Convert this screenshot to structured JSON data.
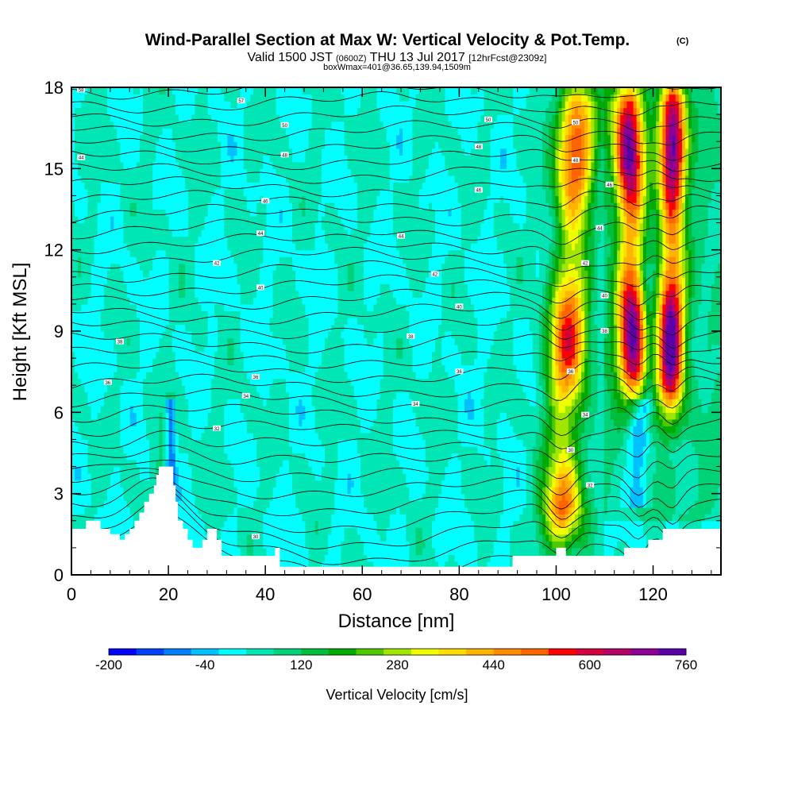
{
  "header": {
    "title": "Wind-Parallel Section at Max W: Vertical Velocity & Pot.Temp.",
    "copyright": "(C)",
    "valid_prefix": "Valid 1500 JST",
    "valid_utc": "(0600Z)",
    "valid_date": "THU 13 Jul 2017",
    "forecast": "[12hrFcst@2309z]",
    "boxinfo": "boxWmax=401@36.65,139.94,1509m"
  },
  "colorbar": {
    "label": "Vertical Velocity [cm/s]",
    "tick_labels": [
      "-200",
      "-40",
      "120",
      "280",
      "440",
      "600",
      "760"
    ],
    "colors": [
      "#0000ff",
      "#0040ff",
      "#0080ff",
      "#00c0ff",
      "#00ffff",
      "#00e6b4",
      "#00d278",
      "#00be3c",
      "#00aa00",
      "#50c800",
      "#a0e600",
      "#f0ff00",
      "#ffdc00",
      "#ffb400",
      "#ff8c00",
      "#ff6400",
      "#ff0000",
      "#d2003c",
      "#b40064",
      "#8c0096",
      "#5a00aa"
    ],
    "min": -200,
    "max": 760
  },
  "chart_data": {
    "type": "heatmap",
    "title": "Wind-Parallel Section at Max W: Vertical Velocity & Pot.Temp.",
    "xlabel": "Distance [nm]",
    "ylabel": "Height [Kft MSL]",
    "xlim": [
      0,
      134
    ],
    "ylim": [
      0,
      18
    ],
    "xticks": [
      0,
      20,
      40,
      60,
      80,
      100,
      120
    ],
    "yticks": [
      0,
      3,
      6,
      9,
      12,
      15,
      18
    ],
    "xtick_labels": [
      "0",
      "20",
      "40",
      "60",
      "80",
      "100",
      "120"
    ],
    "ytick_labels": [
      "0",
      "3",
      "6",
      "9",
      "12",
      "15",
      "18"
    ],
    "background_w": 30,
    "updrafts": [
      {
        "x_center": 101,
        "y_bottom": 1.0,
        "y_top": 18,
        "width": 6,
        "peak": 520,
        "tilt": 0.2
      },
      {
        "x_center": 116,
        "y_bottom": 6.0,
        "y_top": 18,
        "width": 4.5,
        "peak": 650,
        "tilt": -0.1
      },
      {
        "x_center": 123.5,
        "y_bottom": 5.5,
        "y_top": 18,
        "width": 4,
        "peak": 700,
        "tilt": 0.05
      },
      {
        "x_center": 19,
        "y_bottom": 3.0,
        "y_top": 6.2,
        "width": 4,
        "peak": 110,
        "tilt": 0.3
      }
    ],
    "downdrafts": [
      {
        "x_center": 117,
        "y_bottom": 3.0,
        "y_top": 6.0,
        "width": 3,
        "peak": -140
      },
      {
        "x_center": 119,
        "y_bottom": 6.5,
        "y_top": 11,
        "width": 2,
        "peak": -90
      },
      {
        "x_center": 20.5,
        "y_bottom": 2.5,
        "y_top": 6.0,
        "width": 1.5,
        "peak": -170
      }
    ],
    "theta_contour_labels": [
      {
        "x": 2.0,
        "y": 17.9,
        "value": "58"
      },
      {
        "x": 35,
        "y": 17.5,
        "value": "57"
      },
      {
        "x": 44,
        "y": 16.6,
        "value": "50"
      },
      {
        "x": 86,
        "y": 16.8,
        "value": "50"
      },
      {
        "x": 2.0,
        "y": 15.4,
        "value": "44"
      },
      {
        "x": 44,
        "y": 15.5,
        "value": "48"
      },
      {
        "x": 84,
        "y": 15.8,
        "value": "48"
      },
      {
        "x": 40,
        "y": 13.8,
        "value": "46"
      },
      {
        "x": 84,
        "y": 14.2,
        "value": "46"
      },
      {
        "x": 39,
        "y": 12.6,
        "value": "44"
      },
      {
        "x": 68,
        "y": 12.5,
        "value": "44"
      },
      {
        "x": 30,
        "y": 11.5,
        "value": "42"
      },
      {
        "x": 75,
        "y": 11.1,
        "value": "42"
      },
      {
        "x": 39,
        "y": 10.6,
        "value": "40"
      },
      {
        "x": 80,
        "y": 9.9,
        "value": "40"
      },
      {
        "x": 10,
        "y": 8.6,
        "value": "38"
      },
      {
        "x": 70,
        "y": 8.8,
        "value": "38"
      },
      {
        "x": 7.5,
        "y": 7.1,
        "value": "36"
      },
      {
        "x": 38,
        "y": 7.3,
        "value": "36"
      },
      {
        "x": 80,
        "y": 7.5,
        "value": "36"
      },
      {
        "x": 36,
        "y": 6.6,
        "value": "34"
      },
      {
        "x": 71,
        "y": 6.3,
        "value": "34"
      },
      {
        "x": 30,
        "y": 5.4,
        "value": "32"
      },
      {
        "x": 38,
        "y": 1.4,
        "value": "30"
      },
      {
        "x": 103,
        "y": 4.6,
        "value": "30"
      },
      {
        "x": 107,
        "y": 3.3,
        "value": "32"
      },
      {
        "x": 106,
        "y": 5.9,
        "value": "34"
      },
      {
        "x": 103,
        "y": 7.5,
        "value": "36"
      },
      {
        "x": 110,
        "y": 9.0,
        "value": "38"
      },
      {
        "x": 110,
        "y": 10.3,
        "value": "40"
      },
      {
        "x": 106,
        "y": 11.5,
        "value": "42"
      },
      {
        "x": 109,
        "y": 12.8,
        "value": "44"
      },
      {
        "x": 111,
        "y": 14.4,
        "value": "46"
      },
      {
        "x": 104,
        "y": 15.3,
        "value": "48"
      },
      {
        "x": 104,
        "y": 16.7,
        "value": "50"
      }
    ],
    "terrain": [
      [
        0,
        1.7
      ],
      [
        3,
        1.7
      ],
      [
        3,
        2.0
      ],
      [
        6,
        2.0
      ],
      [
        6,
        1.7
      ],
      [
        8,
        1.7
      ],
      [
        8,
        1.5
      ],
      [
        10,
        1.5
      ],
      [
        10,
        1.3
      ],
      [
        11,
        1.3
      ],
      [
        11,
        1.5
      ],
      [
        12,
        1.5
      ],
      [
        12,
        1.7
      ],
      [
        13,
        1.7
      ],
      [
        13,
        2.0
      ],
      [
        14,
        2.0
      ],
      [
        14,
        2.3
      ],
      [
        15,
        2.3
      ],
      [
        15,
        2.7
      ],
      [
        16,
        2.7
      ],
      [
        16,
        3.0
      ],
      [
        17,
        3.0
      ],
      [
        17,
        3.3
      ],
      [
        17.5,
        3.3
      ],
      [
        17.5,
        3.7
      ],
      [
        18,
        3.7
      ],
      [
        18,
        4.0
      ],
      [
        21,
        4.0
      ],
      [
        21,
        3.3
      ],
      [
        21.5,
        3.3
      ],
      [
        21.5,
        2.7
      ],
      [
        22,
        2.7
      ],
      [
        22,
        2.0
      ],
      [
        23,
        2.0
      ],
      [
        23,
        1.7
      ],
      [
        24,
        1.7
      ],
      [
        24,
        1.3
      ],
      [
        25,
        1.3
      ],
      [
        25,
        1.0
      ],
      [
        27,
        1.0
      ],
      [
        27,
        1.3
      ],
      [
        28,
        1.3
      ],
      [
        28,
        1.7
      ],
      [
        30,
        1.7
      ],
      [
        30,
        1.3
      ],
      [
        31,
        1.3
      ],
      [
        31,
        0.7
      ],
      [
        42,
        0.7
      ],
      [
        42,
        1.0
      ],
      [
        43,
        1.0
      ],
      [
        43,
        0.3
      ],
      [
        91,
        0.3
      ],
      [
        91,
        0.7
      ],
      [
        100,
        0.7
      ],
      [
        100,
        1.0
      ],
      [
        102,
        1.0
      ],
      [
        102,
        0.7
      ],
      [
        114,
        0.7
      ],
      [
        114,
        1.0
      ],
      [
        119,
        1.0
      ],
      [
        119,
        1.3
      ],
      [
        122,
        1.3
      ],
      [
        122,
        1.7
      ],
      [
        134,
        1.7
      ]
    ]
  }
}
